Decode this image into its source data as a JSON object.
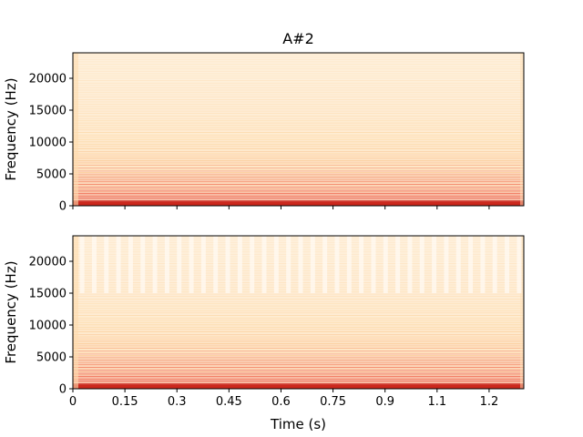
{
  "chart_data": [
    {
      "type": "heatmap",
      "title": "A#2",
      "xlabel": "",
      "ylabel": "Frequency (Hz)",
      "xlim": [
        0,
        1.3
      ],
      "ylim": [
        0,
        24000
      ],
      "x_ticks": [
        0,
        0.15,
        0.3,
        0.45,
        0.6,
        0.75,
        0.9,
        1.05,
        1.2
      ],
      "x_tick_labels": [
        "",
        "",
        "",
        "",
        "",
        "",
        "",
        "",
        ""
      ],
      "y_ticks": [
        0,
        5000,
        10000,
        15000,
        20000
      ],
      "y_tick_labels": [
        "0",
        "5000",
        "10000",
        "15000",
        "20000"
      ],
      "colormap": "OrRd",
      "grid": false,
      "harmonic_spacing_hz": 233,
      "notes": "spectrogram of original signal; horizontal harmonic bands, energy concentrated at low frequencies"
    },
    {
      "type": "heatmap",
      "title": "",
      "xlabel": "Time (s)",
      "ylabel": "Frequency (Hz)",
      "xlim": [
        0,
        1.3
      ],
      "ylim": [
        0,
        24000
      ],
      "x_ticks": [
        0,
        0.15,
        0.3,
        0.45,
        0.6,
        0.75,
        0.9,
        1.05,
        1.2
      ],
      "x_tick_labels": [
        "0",
        "0.15",
        "0.3",
        "0.45",
        "0.6",
        "0.75",
        "0.9",
        "1.1",
        "1.2"
      ],
      "y_ticks": [
        0,
        5000,
        10000,
        15000,
        20000
      ],
      "y_tick_labels": [
        "0",
        "5000",
        "10000",
        "15000",
        "20000"
      ],
      "colormap": "OrRd",
      "grid": false,
      "harmonic_spacing_hz": 233,
      "notes": "spectrogram of reconstructed signal; harmonic bands with periodic vertical gaps at high frequencies"
    }
  ],
  "colors": {
    "background": "#ffffff",
    "axis": "#000000",
    "heat_low": "#fff7ec",
    "heat_mid": "#fdd49e",
    "heat_high": "#ef6548",
    "heat_max": "#b30000"
  }
}
